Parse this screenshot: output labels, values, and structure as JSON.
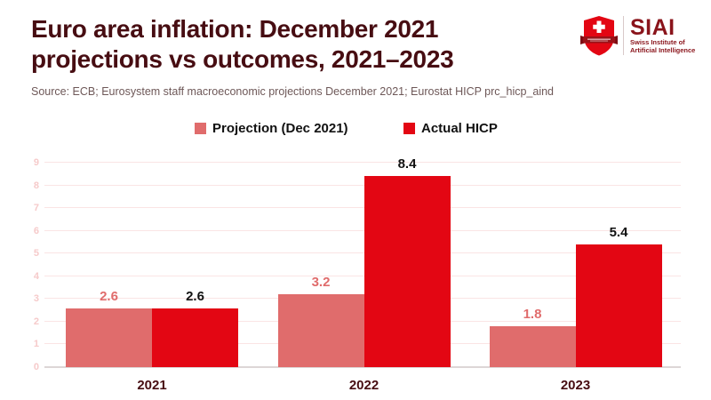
{
  "header": {
    "title_line1": "Euro area inflation: December 2021",
    "title_line2": "projections vs outcomes, 2021–2023",
    "source": "Source: ECB; Eurosystem staff macroeconomic projections December 2021; Eurostat HICP prc_hicp_aind",
    "logo": {
      "name": "SIAI",
      "subtitle_line1": "Swiss Institute of",
      "subtitle_line2": "Artificial Intelligence"
    }
  },
  "legend": {
    "items": [
      {
        "label": "Projection (Dec 2021)",
        "color": "#e06c6c"
      },
      {
        "label": "Actual HICP",
        "color": "#e30613"
      }
    ]
  },
  "chart_data": {
    "type": "bar",
    "title": "Euro area inflation: December 2021 projections vs outcomes, 2021–2023",
    "categories": [
      "2021",
      "2022",
      "2023"
    ],
    "series": [
      {
        "name": "Projection (Dec 2021)",
        "color": "#e06c6c",
        "label_color": "#e06c6c",
        "values": [
          2.6,
          3.2,
          1.8
        ]
      },
      {
        "name": "Actual HICP",
        "color": "#e30613",
        "label_color": "#111111",
        "values": [
          2.6,
          8.4,
          5.4
        ]
      }
    ],
    "xlabel": "",
    "ylabel": "",
    "ylim": [
      0,
      9
    ],
    "yticks": [
      0,
      1,
      2,
      3,
      4,
      5,
      6,
      7,
      8,
      9
    ],
    "grid": true,
    "legend_position": "top",
    "value_labels": true
  },
  "colors": {
    "title": "#470d12",
    "source": "#6e5858",
    "projection_bar": "#e06c6c",
    "actual_bar": "#e30613",
    "gridline": "#fae4e4",
    "tick_label": "#f6caca",
    "logo_red": "#e30613",
    "logo_dark_red": "#8a141b"
  }
}
